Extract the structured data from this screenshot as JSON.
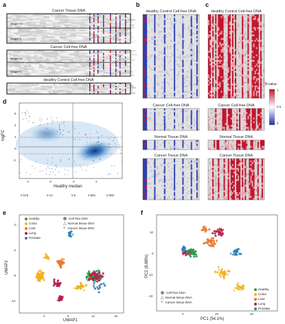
{
  "panels": {
    "a": {
      "label": "a",
      "titles": [
        "Cancer Tissue DNA",
        "Cancer Cell-free DNA",
        "Healthy Control Cell-free DNA"
      ],
      "stage_labels": [
        "Stage IV",
        "Stage II",
        "Stage IV",
        "Stage II"
      ]
    },
    "b": {
      "label": "b",
      "titles": [
        "Healthy Control Cell-free DNA",
        "Cancer Cell-free DNA",
        "Normal Tissue DNA",
        "Cancer Tissue DNA"
      ]
    },
    "c": {
      "label": "c",
      "titles": [
        "Healthy Control Cell-free DNA",
        "Cancer Cell-free DNA",
        "Normal Tissue DNA",
        "Cancer Tissue DNA"
      ],
      "colorbar": {
        "title": "B-value",
        "ticks": [
          "1",
          "0.5",
          "0"
        ],
        "colors": [
          "#c0142b",
          "#ffffff",
          "#2233a8"
        ]
      }
    },
    "d": {
      "label": "d",
      "xlabel": "Healthy median",
      "ylabel": "logFC",
      "xticks": [
        "-4",
        "-2",
        "0",
        "2"
      ],
      "xticks_top_secondary": [
        "0.018",
        "0.12",
        "0.5",
        "0.881",
        "0.982"
      ],
      "yticks": [
        "6",
        "4",
        "2",
        "0",
        "-2"
      ]
    },
    "e": {
      "label": "e",
      "xlabel": "UMAP1",
      "ylabel": "UMAP2",
      "xticks": [
        "4",
        "8",
        "12",
        "16"
      ],
      "yticks": [
        "0",
        "-4",
        "-8",
        "-12"
      ],
      "legend_groups": [
        {
          "name": "Healthy",
          "color": "#2e9a48"
        },
        {
          "name": "Colon",
          "color": "#f1b11b"
        },
        {
          "name": "Liver",
          "color": "#e8762a"
        },
        {
          "name": "Lung",
          "color": "#b41f4b"
        },
        {
          "name": "Prostate",
          "color": "#2f7fb8"
        }
      ],
      "legend_shapes": [
        "Cell free DNA",
        "Normal tissue DNA",
        "Cancer tissue DNA"
      ]
    },
    "f": {
      "label": "f",
      "xlabel": "PC1 (54.1%)",
      "ylabel": "PC2 (8.88%)",
      "xticks": [
        "0",
        "20",
        "40"
      ],
      "yticks": [
        "10",
        "0",
        "-10",
        "-20"
      ],
      "legend_groups": [
        {
          "name": "Healthy",
          "color": "#2e9a48"
        },
        {
          "name": "Colon",
          "color": "#f1b11b"
        },
        {
          "name": "Liver",
          "color": "#e8762a"
        },
        {
          "name": "Lung",
          "color": "#b41f4b"
        },
        {
          "name": "Prostate",
          "color": "#2f7fb8"
        }
      ],
      "legend_shapes": [
        "Cell free DNA",
        "Normal tissue DNA",
        "Cancer tissue DNA"
      ]
    }
  },
  "chart_data": [
    {
      "type": "heatmap",
      "panel": "d",
      "xlabel": "Healthy median",
      "ylabel": "logFC",
      "xlim": [
        -4.5,
        3.2
      ],
      "ylim": [
        -3.5,
        6.5
      ]
    },
    {
      "type": "scatter",
      "panel": "e",
      "xlabel": "UMAP1",
      "ylabel": "UMAP2",
      "xlim": [
        2,
        17
      ],
      "ylim": [
        -12.5,
        2.5
      ],
      "series": [
        {
          "name": "Healthy",
          "color": "#2e9a48"
        },
        {
          "name": "Colon",
          "color": "#f1b11b"
        },
        {
          "name": "Liver",
          "color": "#e8762a"
        },
        {
          "name": "Lung",
          "color": "#b41f4b"
        },
        {
          "name": "Prostate",
          "color": "#2f7fb8"
        }
      ]
    },
    {
      "type": "scatter",
      "panel": "f",
      "xlabel": "PC1 (54.1%)",
      "ylabel": "PC2 (8.88%)",
      "xlim": [
        -12,
        55
      ],
      "ylim": [
        -28,
        16
      ],
      "series": [
        {
          "name": "Healthy",
          "color": "#2e9a48"
        },
        {
          "name": "Colon",
          "color": "#f1b11b"
        },
        {
          "name": "Liver",
          "color": "#e8762a"
        },
        {
          "name": "Lung",
          "color": "#b41f4b"
        },
        {
          "name": "Prostate",
          "color": "#2f7fb8"
        }
      ]
    }
  ]
}
